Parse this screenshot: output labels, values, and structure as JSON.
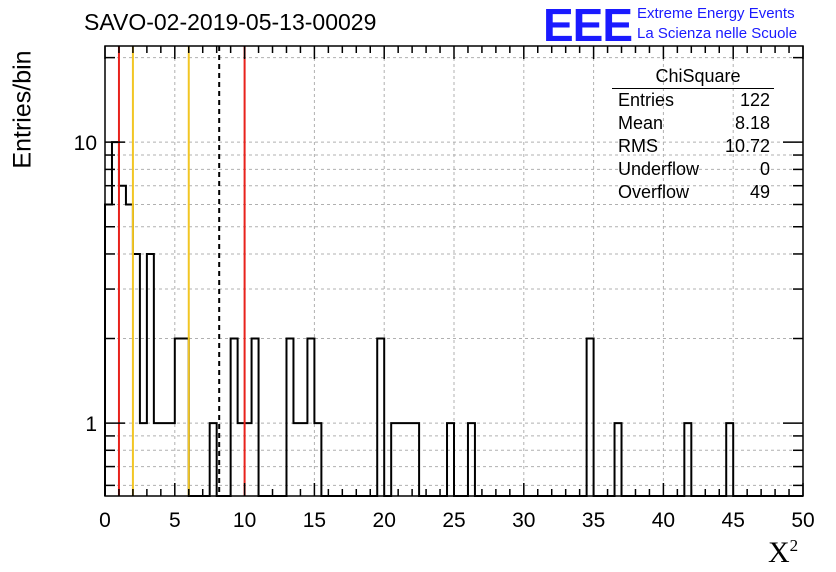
{
  "title": "SAVO-02-2019-05-13-00029",
  "logo": {
    "mark": "EEE",
    "line1": "Extreme Energy Events",
    "line2": "La Scienza nelle Scuole",
    "color": "#1a1aff"
  },
  "stats": {
    "name": "ChiSquare",
    "rows": [
      {
        "label": "Entries",
        "value": "122"
      },
      {
        "label": "Mean",
        "value": "8.18"
      },
      {
        "label": "RMS",
        "value": "10.72"
      },
      {
        "label": "Underflow",
        "value": "0"
      },
      {
        "label": "Overflow",
        "value": "49"
      }
    ]
  },
  "chart_data": {
    "type": "bar",
    "histogram": true,
    "title": "SAVO-02-2019-05-13-00029",
    "xlabel": "X²",
    "ylabel": "Entries/bin",
    "xlim": [
      0,
      50
    ],
    "ylim": [
      0.55,
      22
    ],
    "yscale": "log",
    "bin_width": 0.5,
    "bin_starts": [
      0,
      0.5,
      1,
      1.5,
      2,
      2.5,
      3,
      3.5,
      4,
      4.5,
      5,
      5.5,
      7.5,
      9,
      9.5,
      10,
      10.5,
      13,
      13.5,
      14,
      14.5,
      15,
      19.5,
      20.5,
      21,
      21.5,
      22,
      24.5,
      26,
      34.5,
      36.5,
      41.5,
      44.5
    ],
    "values": [
      6,
      10,
      7,
      6,
      4,
      1,
      4,
      1,
      1,
      1,
      2,
      2,
      1,
      2,
      1,
      1,
      2,
      2,
      1,
      1,
      2,
      1,
      2,
      1,
      1,
      1,
      1,
      1,
      1,
      2,
      1,
      1,
      1
    ],
    "x_ticks": [
      0,
      5,
      10,
      15,
      20,
      25,
      30,
      35,
      40,
      45,
      50
    ],
    "y_tick_labels": [
      1,
      10
    ],
    "vertical_lines": [
      {
        "x": 1.0,
        "color": "#e8221c",
        "style": "solid"
      },
      {
        "x": 2.0,
        "color": "#f2c624",
        "style": "solid"
      },
      {
        "x": 6.0,
        "color": "#f2c624",
        "style": "solid"
      },
      {
        "x": 8.18,
        "color": "#000000",
        "style": "dashed"
      },
      {
        "x": 10.0,
        "color": "#e8221c",
        "style": "solid"
      }
    ],
    "grid": true
  }
}
